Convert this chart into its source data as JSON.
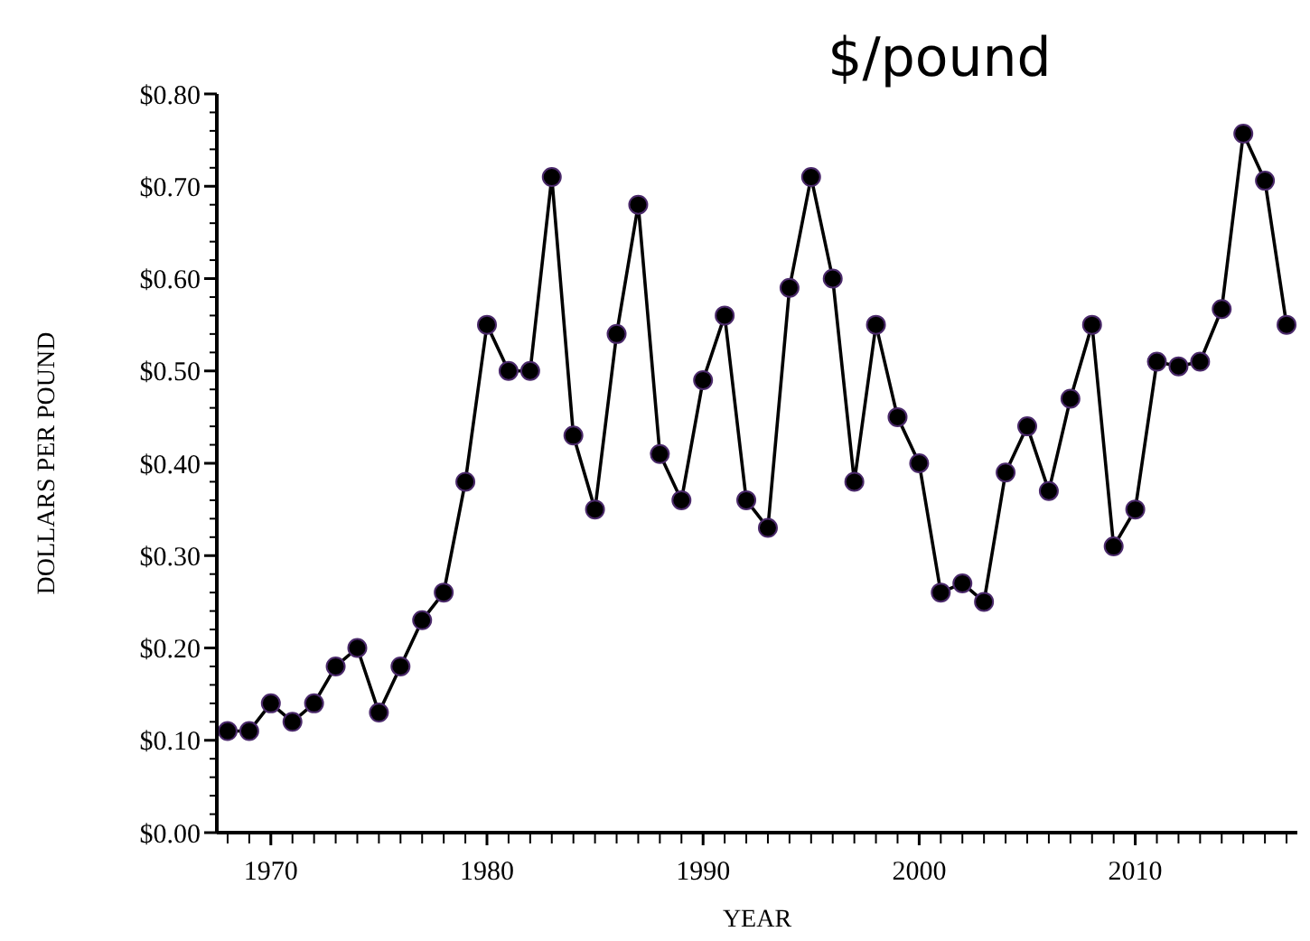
{
  "chart_data": {
    "type": "line",
    "title": "$/pound",
    "xlabel": "YEAR",
    "ylabel": "DOLLARS PER POUND",
    "marker": "circle",
    "line_style": "solid",
    "grid": false,
    "x": [
      1968,
      1969,
      1970,
      1971,
      1972,
      1973,
      1974,
      1975,
      1976,
      1977,
      1978,
      1979,
      1980,
      1981,
      1982,
      1983,
      1984,
      1985,
      1986,
      1987,
      1988,
      1989,
      1990,
      1991,
      1992,
      1993,
      1994,
      1995,
      1996,
      1997,
      1998,
      1999,
      2000,
      2001,
      2002,
      2003,
      2004,
      2005,
      2006,
      2007,
      2008,
      2009,
      2010,
      2011,
      2012,
      2013,
      2014,
      2015,
      2016,
      2017
    ],
    "series": [
      {
        "color": "#000000",
        "values": [
          0.11,
          0.11,
          0.14,
          0.12,
          0.14,
          0.18,
          0.2,
          0.13,
          0.18,
          0.23,
          0.26,
          0.38,
          0.55,
          0.5,
          0.5,
          0.71,
          0.43,
          0.35,
          0.54,
          0.68,
          0.41,
          0.36,
          0.49,
          0.56,
          0.36,
          0.33,
          0.59,
          0.71,
          0.6,
          0.38,
          0.55,
          0.45,
          0.4,
          0.26,
          0.27,
          0.25,
          0.39,
          0.44,
          0.37,
          0.47,
          0.55,
          0.31,
          0.35,
          0.51,
          0.505,
          0.51,
          0.567,
          0.757,
          0.706,
          0.55
        ]
      }
    ],
    "xlim": [
      1967.5,
      2017.5
    ],
    "xticks": [
      1970,
      1980,
      1990,
      2000,
      2010
    ],
    "ylim": [
      0,
      0.8
    ],
    "yticks": [
      {
        "value": 0,
        "label": "$0.00"
      },
      {
        "value": 0.1,
        "label": "$0.10"
      },
      {
        "value": 0.2,
        "label": "$0.20"
      },
      {
        "value": 0.3,
        "label": "$0.30"
      },
      {
        "value": 0.4,
        "label": "$0.40"
      },
      {
        "value": 0.5,
        "label": "$0.50"
      },
      {
        "value": 0.6,
        "label": "$0.60"
      },
      {
        "value": 0.7,
        "label": "$0.70"
      },
      {
        "value": 0.8,
        "label": "$0.80"
      }
    ]
  }
}
